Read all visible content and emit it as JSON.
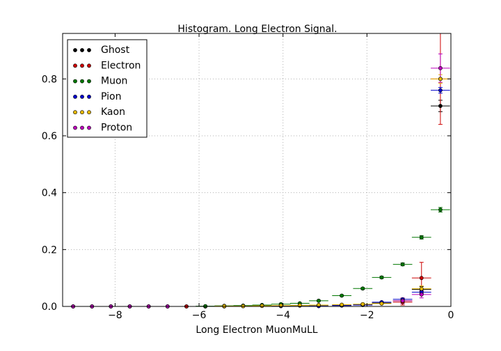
{
  "chart_data": {
    "type": "scatter",
    "title": "Histogram. Long Electron Signal.",
    "xlabel": "Long Electron MuonMuLL",
    "ylabel": "",
    "xlim": [
      -9.25,
      0
    ],
    "ylim": [
      0,
      0.96
    ],
    "xticks": [
      -8,
      -6,
      -4,
      -2,
      0
    ],
    "xtick_labels": [
      "−8",
      "−6",
      "−4",
      "−2",
      "0"
    ],
    "yticks": [
      0,
      0.2,
      0.4,
      0.6,
      0.8
    ],
    "ytick_labels": [
      "0.0",
      "0.2",
      "0.4",
      "0.6",
      "0.8"
    ],
    "grid": true,
    "legend_position": "top-left",
    "bin_half_width": 0.23,
    "series": [
      {
        "name": "Ghost",
        "color": "#000000",
        "points": [
          {
            "x": -9.0,
            "y": 0,
            "yerr": 0
          },
          {
            "x": -8.55,
            "y": 0,
            "yerr": 0
          },
          {
            "x": -8.1,
            "y": 0,
            "yerr": 0
          },
          {
            "x": -7.65,
            "y": 0,
            "yerr": 0
          },
          {
            "x": -7.2,
            "y": 0,
            "yerr": 0
          },
          {
            "x": -6.75,
            "y": 0,
            "yerr": 0
          },
          {
            "x": -6.3,
            "y": 0,
            "yerr": 0
          },
          {
            "x": -5.85,
            "y": 0,
            "yerr": 0
          },
          {
            "x": -5.4,
            "y": 0,
            "yerr": 0
          },
          {
            "x": -4.95,
            "y": 0.001,
            "yerr": 0
          },
          {
            "x": -4.5,
            "y": 0.002,
            "yerr": 0
          },
          {
            "x": -4.05,
            "y": 0.002,
            "yerr": 0
          },
          {
            "x": -3.6,
            "y": 0.003,
            "yerr": 0
          },
          {
            "x": -3.15,
            "y": 0.004,
            "yerr": 0.002
          },
          {
            "x": -2.6,
            "y": 0.005,
            "yerr": 0.002
          },
          {
            "x": -2.1,
            "y": 0.007,
            "yerr": 0.003
          },
          {
            "x": -1.65,
            "y": 0.012,
            "yerr": 0.003
          },
          {
            "x": -1.15,
            "y": 0.02,
            "yerr": 0.004
          },
          {
            "x": -0.7,
            "y": 0.06,
            "yerr": 0.01
          },
          {
            "x": -0.25,
            "y": 0.705,
            "yerr": 0.02
          }
        ]
      },
      {
        "name": "Electron",
        "color": "#cc0000",
        "points": [
          {
            "x": -9.0,
            "y": 0,
            "yerr": 0
          },
          {
            "x": -8.55,
            "y": 0,
            "yerr": 0
          },
          {
            "x": -8.1,
            "y": 0,
            "yerr": 0
          },
          {
            "x": -7.65,
            "y": 0,
            "yerr": 0
          },
          {
            "x": -7.2,
            "y": 0,
            "yerr": 0
          },
          {
            "x": -6.75,
            "y": 0,
            "yerr": 0
          },
          {
            "x": -6.3,
            "y": 0,
            "yerr": 0
          },
          {
            "x": -5.85,
            "y": 0,
            "yerr": 0
          },
          {
            "x": -1.15,
            "y": 0.015,
            "yerr": 0.01
          },
          {
            "x": -0.7,
            "y": 0.1,
            "yerr": 0.055
          },
          {
            "x": -0.25,
            "y": 0.8,
            "yerr": 0.16
          }
        ]
      },
      {
        "name": "Muon",
        "color": "#007700",
        "points": [
          {
            "x": -5.85,
            "y": 0.001,
            "yerr": 0
          },
          {
            "x": -5.4,
            "y": 0.002,
            "yerr": 0
          },
          {
            "x": -4.95,
            "y": 0.003,
            "yerr": 0
          },
          {
            "x": -4.5,
            "y": 0.005,
            "yerr": 0
          },
          {
            "x": -4.05,
            "y": 0.008,
            "yerr": 0.001
          },
          {
            "x": -3.6,
            "y": 0.011,
            "yerr": 0.001
          },
          {
            "x": -3.15,
            "y": 0.02,
            "yerr": 0.002
          },
          {
            "x": -2.6,
            "y": 0.038,
            "yerr": 0.002
          },
          {
            "x": -2.1,
            "y": 0.063,
            "yerr": 0.003
          },
          {
            "x": -1.65,
            "y": 0.102,
            "yerr": 0.004
          },
          {
            "x": -1.15,
            "y": 0.148,
            "yerr": 0.005
          },
          {
            "x": -0.7,
            "y": 0.243,
            "yerr": 0.006
          },
          {
            "x": -0.25,
            "y": 0.34,
            "yerr": 0.008
          }
        ]
      },
      {
        "name": "Pion",
        "color": "#0000cc",
        "points": [
          {
            "x": -4.05,
            "y": 0.001,
            "yerr": 0
          },
          {
            "x": -3.15,
            "y": 0.001,
            "yerr": 0
          },
          {
            "x": -2.6,
            "y": 0.003,
            "yerr": 0.001
          },
          {
            "x": -2.1,
            "y": 0.005,
            "yerr": 0.001
          },
          {
            "x": -1.65,
            "y": 0.015,
            "yerr": 0.002
          },
          {
            "x": -1.15,
            "y": 0.025,
            "yerr": 0.003
          },
          {
            "x": -0.7,
            "y": 0.05,
            "yerr": 0.005
          },
          {
            "x": -0.25,
            "y": 0.76,
            "yerr": 0.01
          }
        ]
      },
      {
        "name": "Kaon",
        "color": "#e6b800",
        "points": [
          {
            "x": -5.4,
            "y": 0.001,
            "yerr": 0
          },
          {
            "x": -4.95,
            "y": 0.001,
            "yerr": 0
          },
          {
            "x": -4.5,
            "y": 0.002,
            "yerr": 0
          },
          {
            "x": -4.05,
            "y": 0.003,
            "yerr": 0
          },
          {
            "x": -3.6,
            "y": 0.004,
            "yerr": 0
          },
          {
            "x": -3.15,
            "y": 0.005,
            "yerr": 0.001
          },
          {
            "x": -2.6,
            "y": 0.006,
            "yerr": 0.001
          },
          {
            "x": -2.1,
            "y": 0.008,
            "yerr": 0.002
          },
          {
            "x": -1.65,
            "y": 0.01,
            "yerr": 0.002
          },
          {
            "x": -1.15,
            "y": 0.02,
            "yerr": 0.003
          },
          {
            "x": -0.7,
            "y": 0.062,
            "yerr": 0.01
          },
          {
            "x": -0.25,
            "y": 0.8,
            "yerr": 0.015
          }
        ]
      },
      {
        "name": "Proton",
        "color": "#bb00bb",
        "points": [
          {
            "x": -9.0,
            "y": 0,
            "yerr": 0
          },
          {
            "x": -8.55,
            "y": 0,
            "yerr": 0
          },
          {
            "x": -8.1,
            "y": 0,
            "yerr": 0
          },
          {
            "x": -7.65,
            "y": 0,
            "yerr": 0
          },
          {
            "x": -7.2,
            "y": 0,
            "yerr": 0
          },
          {
            "x": -6.75,
            "y": 0,
            "yerr": 0
          },
          {
            "x": -1.15,
            "y": 0.02,
            "yerr": 0.01
          },
          {
            "x": -0.7,
            "y": 0.042,
            "yerr": 0.012
          },
          {
            "x": -0.25,
            "y": 0.838,
            "yerr": 0.05
          }
        ]
      }
    ]
  }
}
